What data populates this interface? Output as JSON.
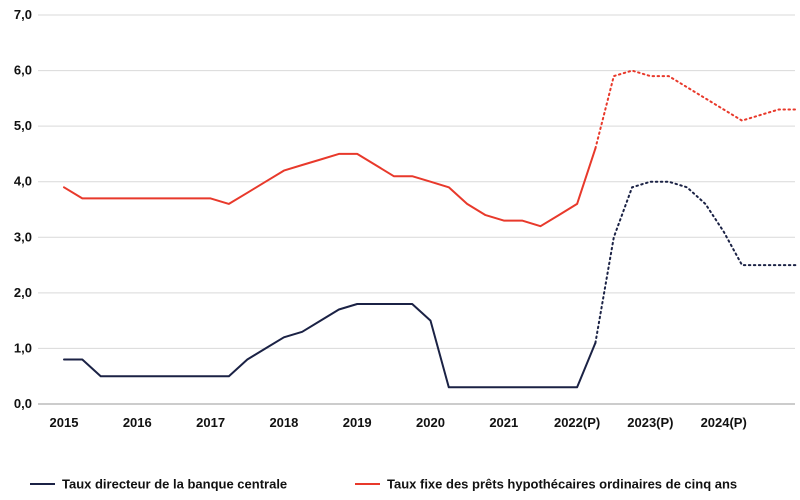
{
  "chart_data": {
    "type": "line",
    "title": "",
    "xlabel": "",
    "ylabel": "",
    "ylim": [
      0,
      7
    ],
    "xlim": [
      2015,
      2025
    ],
    "yticks": [
      0,
      1,
      2,
      3,
      4,
      5,
      6,
      7
    ],
    "ytick_labels": [
      "0,0",
      "1,0",
      "2,0",
      "3,0",
      "4,0",
      "5,0",
      "6,0",
      "7,0"
    ],
    "xticks": [
      2015,
      2016,
      2017,
      2018,
      2019,
      2020,
      2021,
      2022,
      2023,
      2024
    ],
    "xtick_labels": [
      "2015",
      "2016",
      "2017",
      "2018",
      "2019",
      "2020",
      "2021",
      "2022(P)",
      "2023(P)",
      "2024(P)"
    ],
    "grid": true,
    "legend_position": "bottom",
    "series": [
      {
        "name": "Taux directeur de la banque centrale",
        "color": "#1b2245",
        "actual": {
          "x": [
            2015.0,
            2015.25,
            2015.5,
            2015.75,
            2016.0,
            2016.25,
            2016.5,
            2016.75,
            2017.0,
            2017.25,
            2017.5,
            2017.75,
            2018.0,
            2018.25,
            2018.5,
            2018.75,
            2019.0,
            2019.25,
            2019.5,
            2019.75,
            2020.0,
            2020.25,
            2020.5,
            2020.75,
            2021.0,
            2021.25,
            2021.5,
            2021.75,
            2022.0,
            2022.25
          ],
          "y": [
            0.8,
            0.8,
            0.5,
            0.5,
            0.5,
            0.5,
            0.5,
            0.5,
            0.5,
            0.5,
            0.8,
            1.0,
            1.2,
            1.3,
            1.5,
            1.7,
            1.8,
            1.8,
            1.8,
            1.8,
            1.5,
            0.3,
            0.3,
            0.3,
            0.3,
            0.3,
            0.3,
            0.3,
            0.3,
            1.1
          ]
        },
        "forecast": {
          "x": [
            2022.25,
            2022.5,
            2022.75,
            2023.0,
            2023.25,
            2023.5,
            2023.75,
            2024.0,
            2024.25,
            2024.5,
            2024.75,
            2025.0
          ],
          "y": [
            1.1,
            3.0,
            3.9,
            4.0,
            4.0,
            3.9,
            3.6,
            3.1,
            2.5,
            2.5,
            2.5,
            2.5
          ]
        }
      },
      {
        "name": "Taux fixe des prêts hypothécaires ordinaires de cinq ans",
        "color": "#e8392b",
        "actual": {
          "x": [
            2015.0,
            2015.25,
            2015.5,
            2015.75,
            2016.0,
            2016.25,
            2016.5,
            2016.75,
            2017.0,
            2017.25,
            2017.5,
            2017.75,
            2018.0,
            2018.25,
            2018.5,
            2018.75,
            2019.0,
            2019.25,
            2019.5,
            2019.75,
            2020.0,
            2020.25,
            2020.5,
            2020.75,
            2021.0,
            2021.25,
            2021.5,
            2021.75,
            2022.0,
            2022.25
          ],
          "y": [
            3.9,
            3.7,
            3.7,
            3.7,
            3.7,
            3.7,
            3.7,
            3.7,
            3.7,
            3.6,
            3.8,
            4.0,
            4.2,
            4.3,
            4.4,
            4.5,
            4.5,
            4.3,
            4.1,
            4.1,
            4.0,
            3.9,
            3.6,
            3.4,
            3.3,
            3.3,
            3.2,
            3.4,
            3.6,
            4.6
          ]
        },
        "forecast": {
          "x": [
            2022.25,
            2022.5,
            2022.75,
            2023.0,
            2023.25,
            2023.5,
            2023.75,
            2024.0,
            2024.25,
            2024.5,
            2024.75,
            2025.0
          ],
          "y": [
            4.6,
            5.9,
            6.0,
            5.9,
            5.9,
            5.7,
            5.5,
            5.3,
            5.1,
            5.2,
            5.3,
            5.3
          ]
        }
      }
    ]
  }
}
